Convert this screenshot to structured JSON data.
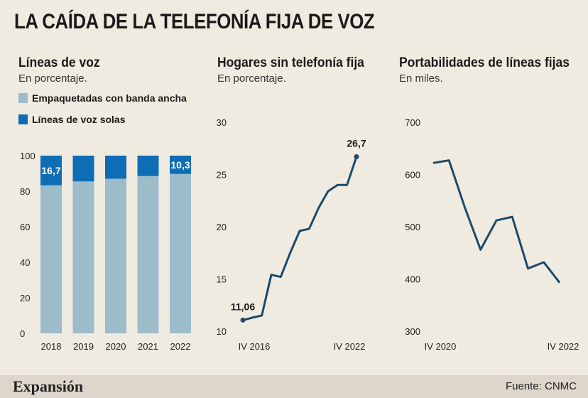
{
  "title": "LA CAÍDA DE LA TELEFONÍA FIJA DE VOZ",
  "footer": {
    "brand": "Expansión",
    "source": "Fuente: CNMC"
  },
  "colors": {
    "bundled": "#9dbcc9",
    "solo": "#0f6db5",
    "line": "#1b4a6b",
    "background": "#f0ebe1"
  },
  "chart_data": [
    {
      "type": "bar",
      "stacked": true,
      "title": "Líneas de voz",
      "subtitle": "En porcentaje.",
      "legend": [
        "Empaquetadas con banda ancha",
        "Líneas de voz solas"
      ],
      "categories": [
        "2018",
        "2019",
        "2020",
        "2021",
        "2022"
      ],
      "series": [
        {
          "name": "Empaquetadas con banda ancha",
          "values": [
            83.3,
            85.5,
            87,
            88.5,
            89.7
          ]
        },
        {
          "name": "Líneas de voz solas",
          "values": [
            16.7,
            14.5,
            13,
            11.5,
            10.3
          ]
        }
      ],
      "data_labels": [
        {
          "category": "2018",
          "label": "16,7"
        },
        {
          "category": "2022",
          "label": "10,3"
        }
      ],
      "ylim": [
        0,
        100
      ],
      "yticks": [
        "0",
        "20",
        "40",
        "60",
        "80",
        "100"
      ]
    },
    {
      "type": "line",
      "title": "Hogares sin telefonía fija",
      "subtitle": "En porcentaje.",
      "values": [
        11.06,
        11.3,
        11.5,
        15.4,
        15.2,
        17.5,
        19.6,
        19.8,
        21.8,
        23.4,
        24,
        24,
        26.7
      ],
      "xticks": [
        "IV 2016",
        "IV 2022"
      ],
      "first_label": "11,06",
      "last_label": "26,7",
      "ylim": [
        10,
        30
      ],
      "yticks": [
        "10",
        "15",
        "20",
        "25",
        "30"
      ]
    },
    {
      "type": "line",
      "title": "Portabilidades de líneas fijas",
      "subtitle": "En miles.",
      "values": [
        622,
        627,
        537,
        456,
        512,
        519,
        420,
        432,
        393
      ],
      "xticks": [
        "IV 2020",
        "IV 2022"
      ],
      "ylim": [
        300,
        700
      ],
      "yticks": [
        "300",
        "400",
        "500",
        "600",
        "700"
      ]
    }
  ]
}
